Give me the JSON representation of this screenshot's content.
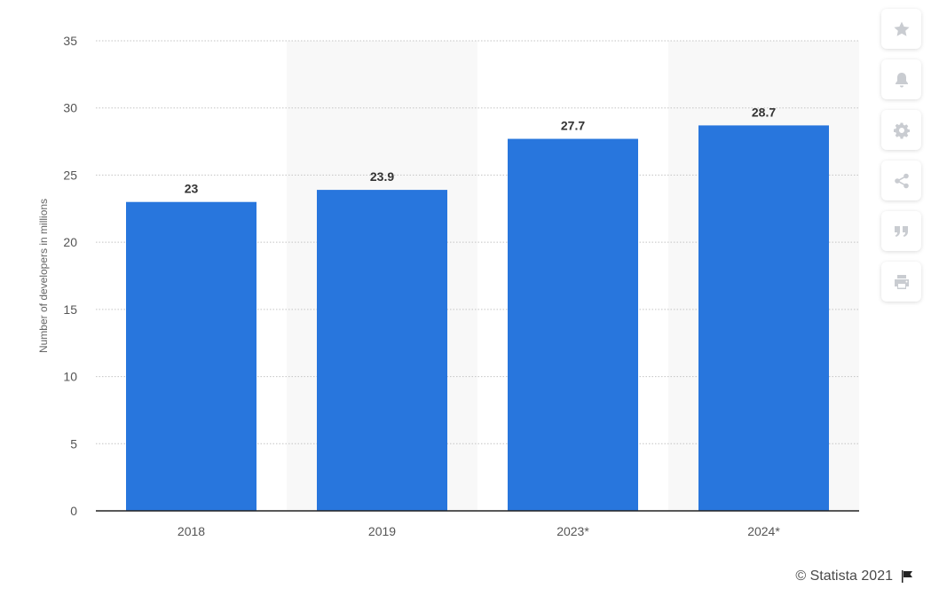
{
  "chart_data": {
    "type": "bar",
    "categories": [
      "2018",
      "2019",
      "2023*",
      "2024*"
    ],
    "values": [
      23,
      23.9,
      27.7,
      28.7
    ],
    "data_labels": [
      "23",
      "23.9",
      "27.7",
      "28.7"
    ],
    "ylabel": "Number of developers in millions",
    "ylim": [
      0,
      35
    ],
    "yticks": [
      "0",
      "5",
      "10",
      "15",
      "20",
      "25",
      "30",
      "35"
    ],
    "ytick_values": [
      0,
      5,
      10,
      15,
      20,
      25,
      30,
      35
    ],
    "bar_color": "#2876dd",
    "band_color": "#f8f8f8",
    "grid": true
  },
  "toolbar": {
    "buttons": [
      {
        "name": "favorite-button",
        "icon": "star-icon"
      },
      {
        "name": "notification-button",
        "icon": "bell-icon"
      },
      {
        "name": "settings-button",
        "icon": "gear-icon"
      },
      {
        "name": "share-button",
        "icon": "share-icon"
      },
      {
        "name": "cite-button",
        "icon": "quote-icon"
      },
      {
        "name": "print-button",
        "icon": "printer-icon"
      }
    ]
  },
  "credit": {
    "text": "© Statista 2021",
    "icon": "flag-icon"
  }
}
